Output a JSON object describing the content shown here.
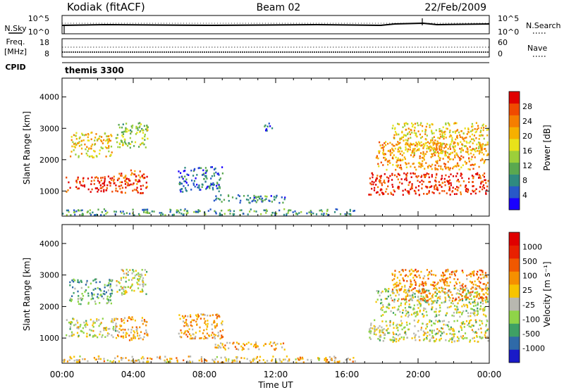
{
  "header": {
    "station": "Kodiak (fitACF)",
    "beam": "Beam 02",
    "date": "22/Feb/2009"
  },
  "strips": {
    "nsky_label": "N.Sky",
    "nsky_ticks": [
      "10^5",
      "10^0"
    ],
    "nsearch_label": "N.Search",
    "nsearch_ticks": [
      "10^5",
      "10^0"
    ],
    "freq_label": "Freq.",
    "freq_unit": "[MHz]",
    "freq_ticks": [
      "18",
      "8"
    ],
    "nave_label": "Nave",
    "nave_ticks": [
      "60",
      "0"
    ],
    "cpid_label": "CPID",
    "cpid_value": "themis 3300"
  },
  "chart_data": [
    {
      "type": "heatmap",
      "name": "power",
      "ylabel": "Slant Range [km]",
      "yticks": [
        1000,
        2000,
        3000,
        4000
      ],
      "ylim": [
        200,
        4600
      ],
      "xlim": [
        0,
        24
      ],
      "colorbar": {
        "label": "Power [dB]",
        "ticks": [
          "28",
          "24",
          "20",
          "16",
          "12",
          "8",
          "4"
        ],
        "colors": [
          "#1a00ff",
          "#2858c8",
          "#2f8a80",
          "#5aa84f",
          "#9ccf3a",
          "#e8e21a",
          "#f6b000",
          "#f57e00",
          "#f04a00",
          "#e00000"
        ]
      },
      "regions": [
        {
          "t0": 0.2,
          "t1": 3.0,
          "r0": 1000,
          "r1": 1500,
          "level": 0.92
        },
        {
          "t0": 3.0,
          "t1": 4.8,
          "r0": 950,
          "r1": 1700,
          "level": 0.85
        },
        {
          "t0": 0.4,
          "t1": 2.8,
          "r0": 2100,
          "r1": 2900,
          "level": 0.6
        },
        {
          "t0": 3.0,
          "t1": 4.8,
          "r0": 2400,
          "r1": 3200,
          "level": 0.45
        },
        {
          "t0": 6.5,
          "t1": 9.0,
          "r0": 1000,
          "r1": 1800,
          "level": 0.2
        },
        {
          "t0": 8.5,
          "t1": 12.5,
          "r0": 650,
          "r1": 900,
          "level": 0.25
        },
        {
          "t0": 0.0,
          "t1": 16.5,
          "r0": 250,
          "r1": 450,
          "level": 0.3
        },
        {
          "t0": 17.2,
          "t1": 23.9,
          "r0": 900,
          "r1": 1600,
          "level": 0.9
        },
        {
          "t0": 17.6,
          "t1": 23.9,
          "r0": 1700,
          "r1": 2600,
          "level": 0.7
        },
        {
          "t0": 18.5,
          "t1": 23.9,
          "r0": 2200,
          "r1": 3200,
          "level": 0.6
        },
        {
          "t0": 11.3,
          "t1": 11.8,
          "r0": 2900,
          "r1": 3200,
          "level": 0.15
        }
      ]
    },
    {
      "type": "heatmap",
      "name": "velocity",
      "ylabel": "Slant Range [km]",
      "yticks": [
        1000,
        2000,
        3000,
        4000
      ],
      "ylim": [
        200,
        4600
      ],
      "xlim": [
        0,
        24
      ],
      "xticks": [
        "00:00",
        "04:00",
        "08:00",
        "12:00",
        "16:00",
        "20:00",
        "00:00"
      ],
      "xlabel": "Time UT",
      "colorbar": {
        "label": "Velocity [m s⁻¹]",
        "ticks": [
          "1000",
          "500",
          "100",
          "25",
          "-25",
          "-100",
          "-500",
          "-1000"
        ],
        "colors": [
          "#1a1ac8",
          "#2f6aa8",
          "#3fa065",
          "#8fd448",
          "#b8b8b0",
          "#f7c400",
          "#f59000",
          "#f05800",
          "#e82000",
          "#e00000"
        ]
      },
      "regions": [
        {
          "t0": 0.2,
          "t1": 3.0,
          "r0": 1050,
          "r1": 1650,
          "level": 0.45
        },
        {
          "t0": 3.0,
          "t1": 4.8,
          "r0": 950,
          "r1": 1700,
          "level": 0.58
        },
        {
          "t0": 0.4,
          "t1": 2.8,
          "r0": 2100,
          "r1": 2900,
          "level": 0.3
        },
        {
          "t0": 3.0,
          "t1": 4.8,
          "r0": 2400,
          "r1": 3200,
          "level": 0.45
        },
        {
          "t0": 6.5,
          "t1": 9.0,
          "r0": 1000,
          "r1": 1800,
          "level": 0.6
        },
        {
          "t0": 8.5,
          "t1": 12.5,
          "r0": 650,
          "r1": 900,
          "level": 0.6
        },
        {
          "t0": 0.0,
          "t1": 16.5,
          "r0": 250,
          "r1": 450,
          "level": 0.55
        },
        {
          "t0": 17.2,
          "t1": 23.9,
          "r0": 900,
          "r1": 1600,
          "level": 0.45
        },
        {
          "t0": 17.6,
          "t1": 23.9,
          "r0": 1700,
          "r1": 2600,
          "level": 0.42
        },
        {
          "t0": 18.5,
          "t1": 23.9,
          "r0": 2200,
          "r1": 3200,
          "level": 0.65
        }
      ]
    }
  ]
}
